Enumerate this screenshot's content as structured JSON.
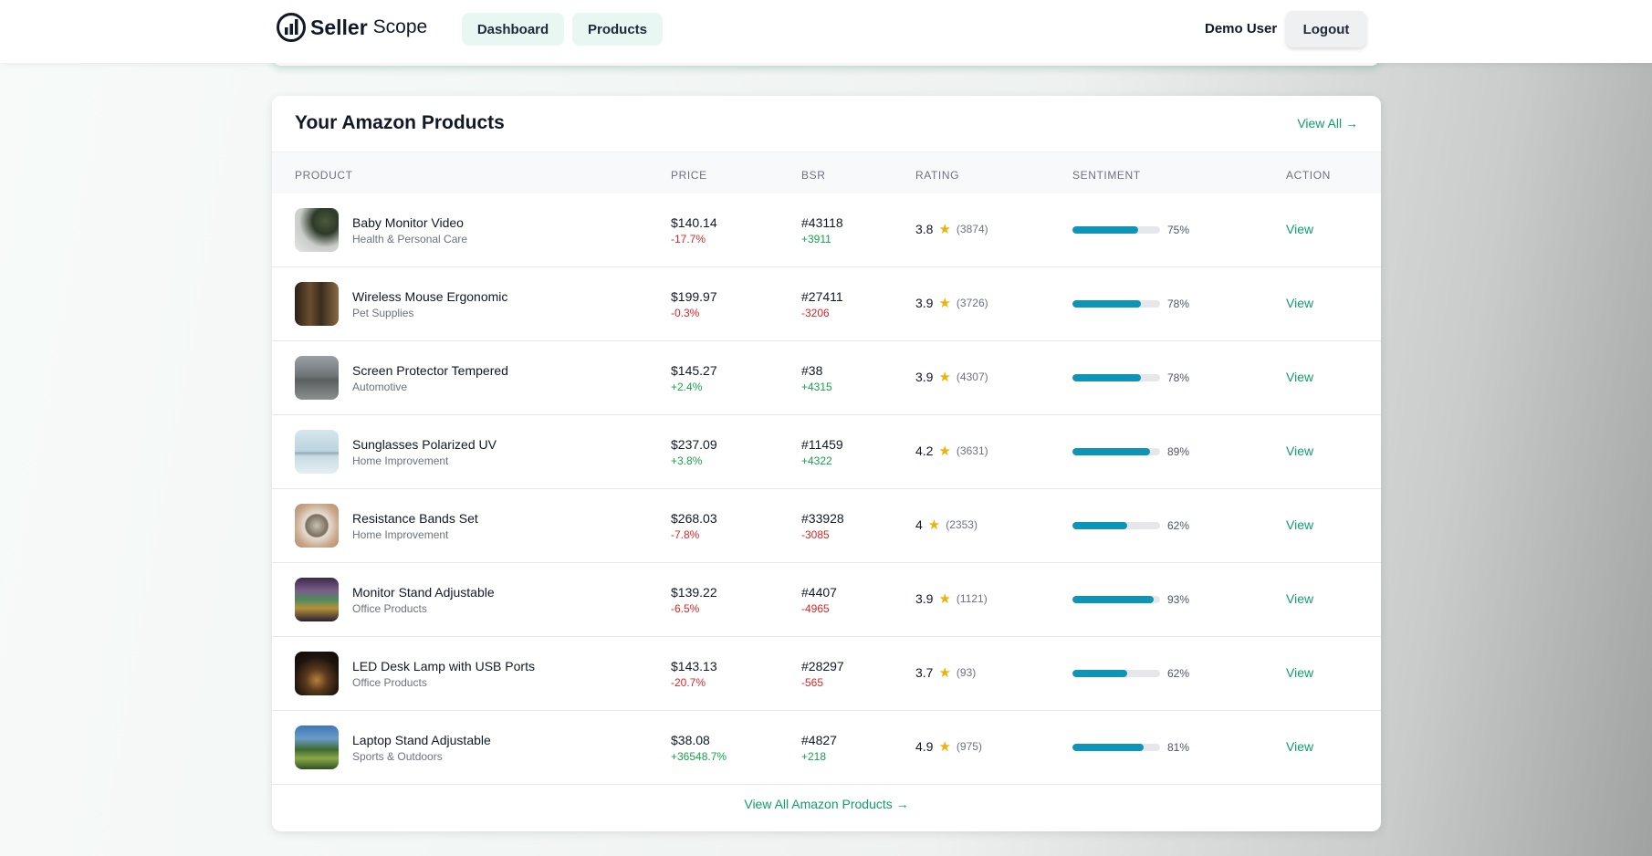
{
  "header": {
    "logo_strong": "Seller",
    "logo_light": "Scope",
    "nav": [
      "Dashboard",
      "Products"
    ],
    "user": "Demo User",
    "logout": "Logout"
  },
  "colors": {
    "accent": "#0f9d6b",
    "bar": "#0e94b6",
    "negative": "#dc2626",
    "positive": "#16a34a"
  },
  "products_card": {
    "title": "Your Amazon Products",
    "view_all": "View All →",
    "columns": [
      "PRODUCT",
      "PRICE",
      "BSR",
      "RATING",
      "SENTIMENT",
      "ACTION"
    ],
    "rows": [
      {
        "name": "Baby Monitor Video",
        "category": "Health & Personal Care",
        "price": "$140.14",
        "price_change": "-17.7%",
        "bsr": "#43118",
        "bsr_change": "+3911",
        "rating": "3.8",
        "reviews": "(3874)",
        "sentiment": 75,
        "sentiment_label": "75%",
        "action": "View"
      },
      {
        "name": "Wireless Mouse Ergonomic",
        "category": "Pet Supplies",
        "price": "$199.97",
        "price_change": "-0.3%",
        "bsr": "#27411",
        "bsr_change": "-3206",
        "rating": "3.9",
        "reviews": "(3726)",
        "sentiment": 78,
        "sentiment_label": "78%",
        "action": "View"
      },
      {
        "name": "Screen Protector Tempered",
        "category": "Automotive",
        "price": "$145.27",
        "price_change": "+2.4%",
        "bsr": "#38",
        "bsr_change": "+4315",
        "rating": "3.9",
        "reviews": "(4307)",
        "sentiment": 78,
        "sentiment_label": "78%",
        "action": "View"
      },
      {
        "name": "Sunglasses Polarized UV",
        "category": "Home Improvement",
        "price": "$237.09",
        "price_change": "+3.8%",
        "bsr": "#11459",
        "bsr_change": "+4322",
        "rating": "4.2",
        "reviews": "(3631)",
        "sentiment": 89,
        "sentiment_label": "89%",
        "action": "View"
      },
      {
        "name": "Resistance Bands Set",
        "category": "Home Improvement",
        "price": "$268.03",
        "price_change": "-7.8%",
        "bsr": "#33928",
        "bsr_change": "-3085",
        "rating": "4",
        "reviews": "(2353)",
        "sentiment": 62,
        "sentiment_label": "62%",
        "action": "View"
      },
      {
        "name": "Monitor Stand Adjustable",
        "category": "Office Products",
        "price": "$139.22",
        "price_change": "-6.5%",
        "bsr": "#4407",
        "bsr_change": "-4965",
        "rating": "3.9",
        "reviews": "(1121)",
        "sentiment": 93,
        "sentiment_label": "93%",
        "action": "View"
      },
      {
        "name": "LED Desk Lamp with USB Ports",
        "category": "Office Products",
        "price": "$143.13",
        "price_change": "-20.7%",
        "bsr": "#28297",
        "bsr_change": "-565",
        "rating": "3.7",
        "reviews": "(93)",
        "sentiment": 62,
        "sentiment_label": "62%",
        "action": "View"
      },
      {
        "name": "Laptop Stand Adjustable",
        "category": "Sports & Outdoors",
        "price": "$38.08",
        "price_change": "+36548.7%",
        "bsr": "#4827",
        "bsr_change": "+218",
        "rating": "4.9",
        "reviews": "(975)",
        "sentiment": 81,
        "sentiment_label": "81%",
        "action": "View"
      }
    ],
    "footer_link": "View All Amazon Products →"
  }
}
